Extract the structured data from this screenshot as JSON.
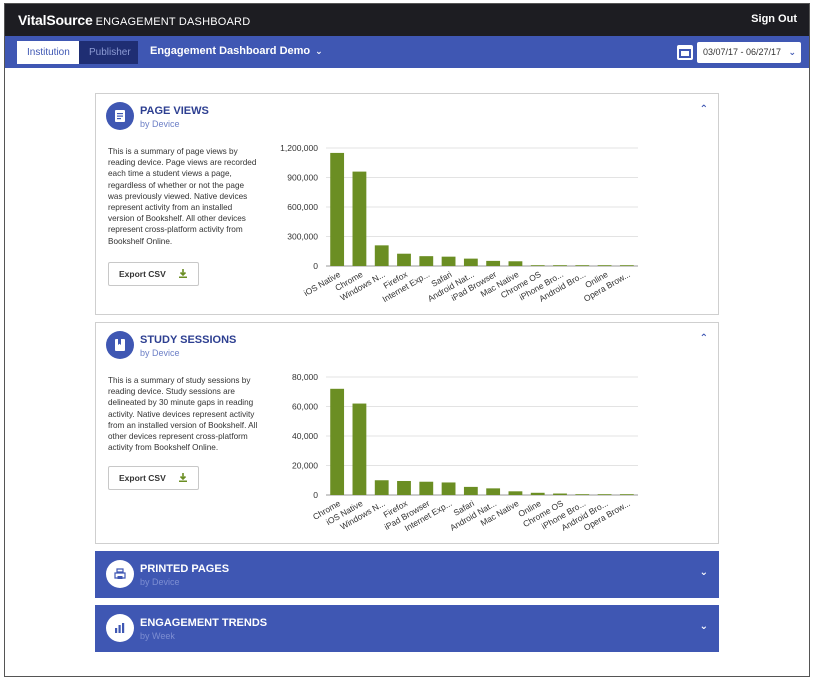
{
  "topbar": {
    "brand_main": "VitalSource",
    "brand_sub": "ENGAGEMENT DASHBOARD",
    "sign_out": "Sign Out"
  },
  "navbar": {
    "tabs": [
      {
        "label": "Institution",
        "active": true
      },
      {
        "label": "Publisher",
        "active": false
      }
    ],
    "dashboard_title": "Engagement Dashboard Demo",
    "date_range": "03/07/17 - 06/27/17"
  },
  "panels": {
    "page_views": {
      "title": "PAGE VIEWS",
      "subtitle": "by Device",
      "description": "This is a summary of page views by reading device. Page views are recorded each time a student views a page, regardless of whether or not the page was previously viewed. Native devices represent activity from an installed version of Bookshelf. All other devices represent cross-platform activity from Bookshelf Online.",
      "export_label": "Export CSV"
    },
    "study_sessions": {
      "title": "STUDY SESSIONS",
      "subtitle": "by Device",
      "description": "This is a summary of study sessions by reading device. Study sessions are delineated by 30 minute gaps in reading activity. Native devices represent activity from an installed version of Bookshelf. All other devices represent cross-platform activity from Bookshelf Online.",
      "export_label": "Export CSV"
    },
    "printed_pages": {
      "title": "PRINTED PAGES",
      "subtitle": "by Device"
    },
    "engagement_trends": {
      "title": "ENGAGEMENT TRENDS",
      "subtitle": "by Week"
    }
  },
  "colors": {
    "accent": "#3f57b3",
    "bar": "#6b8e23",
    "topbar": "#1d1d22"
  },
  "chart_data": [
    {
      "type": "bar",
      "categories": [
        "iOS Native",
        "Chrome",
        "Windows N...",
        "Firefox",
        "Internet Exp...",
        "Safari",
        "Android Nat...",
        "iPad Browser",
        "Mac Native",
        "Chrome OS",
        "iPhone Bro...",
        "Android Bro...",
        "Online",
        "Opera Brow..."
      ],
      "values": [
        1150000,
        960000,
        210000,
        125000,
        100000,
        95000,
        75000,
        52000,
        48000,
        8000,
        3000,
        2000,
        1000,
        500
      ],
      "yticks": [
        "1,200,000",
        "900,000",
        "600,000",
        "300,000",
        "0"
      ],
      "ylim": [
        0,
        1200000
      ],
      "grid": true
    },
    {
      "type": "bar",
      "categories": [
        "Chrome",
        "iOS Native",
        "Windows N...",
        "Firefox",
        "iPad Browser",
        "Internet Exp...",
        "Safari",
        "Android Nat...",
        "Mac Native",
        "Online",
        "Chrome OS",
        "iPhone Bro...",
        "Android Bro...",
        "Opera Brow..."
      ],
      "values": [
        72000,
        62000,
        10000,
        9500,
        9000,
        8500,
        5500,
        4500,
        2500,
        1500,
        1000,
        500,
        300,
        200
      ],
      "yticks": [
        "80,000",
        "60,000",
        "40,000",
        "20,000",
        "0"
      ],
      "ylim": [
        0,
        80000
      ],
      "grid": true
    }
  ]
}
